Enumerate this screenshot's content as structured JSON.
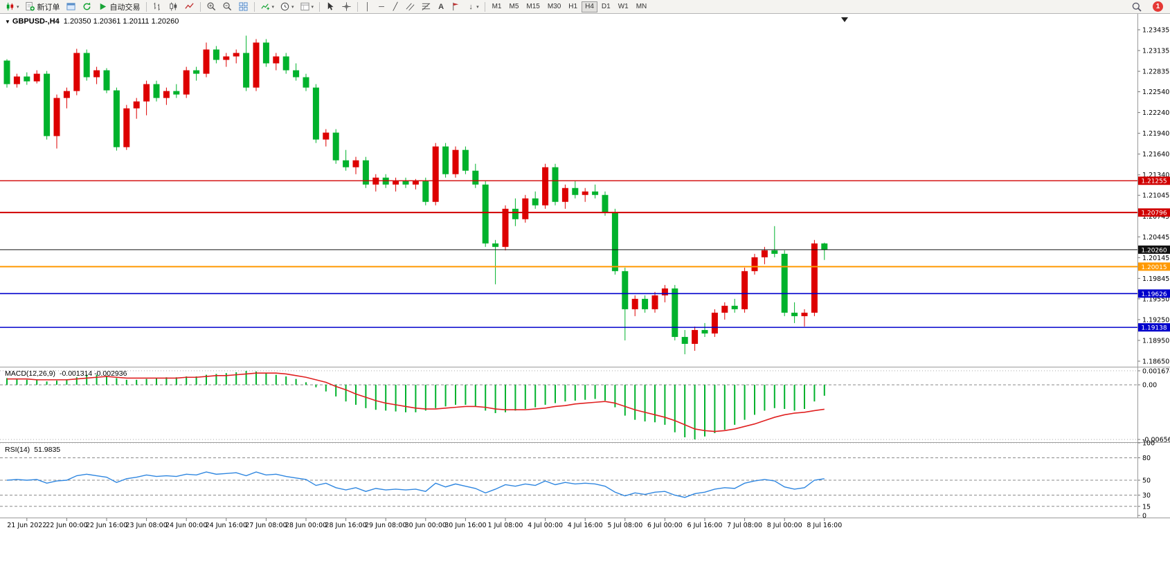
{
  "toolbar": {
    "new_order": "新订单",
    "autotrading": "自动交易",
    "timeframes": [
      "M1",
      "M5",
      "M15",
      "M30",
      "H1",
      "H4",
      "D1",
      "W1",
      "MN"
    ],
    "active_timeframe": "H4",
    "notification_count": "1"
  },
  "chart": {
    "symbol_title": "GBPUSD-,H4",
    "ohlc_line": "1.20350 1.20361 1.20111 1.20260",
    "macd_label": "MACD(12,26,9)",
    "macd_values": "-0.001314 -0.002936",
    "rsi_label": "RSI(14)",
    "rsi_value": "51.9835"
  },
  "chart_data": {
    "type": "candlestick",
    "title": "GBPUSD-,H4",
    "symbol": "GBPUSD-",
    "timeframe": "H4",
    "current_price": 1.2026,
    "price_axis_labels": [
      "1.23435",
      "1.23135",
      "1.22835",
      "1.22540",
      "1.22240",
      "1.21940",
      "1.21640",
      "1.21340",
      "1.21045",
      "1.20745",
      "1.20445",
      "1.20145",
      "1.19845",
      "1.19550",
      "1.19250",
      "1.18950",
      "1.18650"
    ],
    "time_axis": {
      "tick_indices": [
        2,
        6,
        10,
        14,
        18,
        22,
        26,
        30,
        34,
        38,
        42,
        46,
        50,
        54,
        58,
        62,
        66,
        70,
        74,
        78,
        82
      ],
      "tick_labels": [
        "21 Jun 2022",
        "22 Jun 00:00",
        "22 Jun 16:00",
        "23 Jun 08:00",
        "24 Jun 00:00",
        "24 Jun 16:00",
        "27 Jun 08:00",
        "28 Jun 00:00",
        "28 Jun 16:00",
        "29 Jun 08:00",
        "30 Jun 00:00",
        "30 Jun 16:00",
        "1 Jul 08:00",
        "4 Jul 00:00",
        "4 Jul 16:00",
        "5 Jul 08:00",
        "6 Jul 00:00",
        "6 Jul 16:00",
        "7 Jul 08:00",
        "8 Jul 00:00",
        "8 Jul 16:00"
      ]
    },
    "hlines": [
      {
        "price": 1.21255,
        "label": "1.21255",
        "color": "#d00000",
        "lw": 1.4
      },
      {
        "price": 1.20796,
        "label": "1.20796",
        "color": "#d00000",
        "lw": 2
      },
      {
        "price": 1.2026,
        "label": "1.20260",
        "color": "#111111",
        "lw": 1
      },
      {
        "price": 1.20015,
        "label": "1.20015",
        "color": "#ff9900",
        "lw": 2
      },
      {
        "price": 1.19626,
        "label": "1.19626",
        "color": "#0000cc",
        "lw": 1.6
      },
      {
        "price": 1.19138,
        "label": "1.19138",
        "color": "#0000cc",
        "lw": 1.6
      }
    ],
    "candles": {
      "up_color": "#dd0000",
      "down_color": "#00b22c",
      "ohlc": [
        [
          1.2299,
          1.2301,
          1.226,
          1.2265
        ],
        [
          1.2265,
          1.228,
          1.226,
          1.2276
        ],
        [
          1.2276,
          1.2282,
          1.2264,
          1.2269
        ],
        [
          1.2269,
          1.2285,
          1.2266,
          1.228
        ],
        [
          1.228,
          1.2284,
          1.2185,
          1.219
        ],
        [
          1.219,
          1.225,
          1.2172,
          1.2245
        ],
        [
          1.2245,
          1.226,
          1.223,
          1.2255
        ],
        [
          1.2255,
          1.2316,
          1.2249,
          1.231
        ],
        [
          1.231,
          1.2315,
          1.227,
          1.2275
        ],
        [
          1.2275,
          1.229,
          1.2265,
          1.2285
        ],
        [
          1.2285,
          1.2288,
          1.2252,
          1.2256
        ],
        [
          1.2256,
          1.226,
          1.2169,
          1.2174
        ],
        [
          1.2174,
          1.2235,
          1.217,
          1.223
        ],
        [
          1.223,
          1.2245,
          1.2215,
          1.224
        ],
        [
          1.224,
          1.227,
          1.222,
          1.2265
        ],
        [
          1.2265,
          1.227,
          1.224,
          1.2245
        ],
        [
          1.2245,
          1.226,
          1.2235,
          1.2255
        ],
        [
          1.2255,
          1.2265,
          1.2245,
          1.225
        ],
        [
          1.225,
          1.229,
          1.2245,
          1.2285
        ],
        [
          1.2285,
          1.229,
          1.227,
          1.228
        ],
        [
          1.228,
          1.2325,
          1.2275,
          1.2315
        ],
        [
          1.2315,
          1.232,
          1.2295,
          1.23
        ],
        [
          1.23,
          1.231,
          1.229,
          1.2305
        ],
        [
          1.2305,
          1.2315,
          1.2295,
          1.231
        ],
        [
          1.231,
          1.2335,
          1.2255,
          1.226
        ],
        [
          1.226,
          1.233,
          1.2255,
          1.2325
        ],
        [
          1.2325,
          1.233,
          1.229,
          1.2295
        ],
        [
          1.2295,
          1.231,
          1.2285,
          1.2305
        ],
        [
          1.2305,
          1.231,
          1.228,
          1.2285
        ],
        [
          1.2285,
          1.2295,
          1.227,
          1.2275
        ],
        [
          1.2275,
          1.228,
          1.2255,
          1.226
        ],
        [
          1.226,
          1.2265,
          1.218,
          1.2185
        ],
        [
          1.2185,
          1.22,
          1.2175,
          1.2195
        ],
        [
          1.2195,
          1.22,
          1.215,
          1.2155
        ],
        [
          1.2155,
          1.217,
          1.214,
          1.2145
        ],
        [
          1.2145,
          1.216,
          1.2135,
          1.2155
        ],
        [
          1.2155,
          1.216,
          1.2115,
          1.212
        ],
        [
          1.212,
          1.2135,
          1.211,
          1.213
        ],
        [
          1.213,
          1.2135,
          1.2115,
          1.212
        ],
        [
          1.212,
          1.213,
          1.211,
          1.2125
        ],
        [
          1.2125,
          1.213,
          1.2115,
          1.212
        ],
        [
          1.212,
          1.2128,
          1.2113,
          1.2125
        ],
        [
          1.2125,
          1.213,
          1.209,
          1.2095
        ],
        [
          1.2095,
          1.218,
          1.209,
          1.2175
        ],
        [
          1.2175,
          1.218,
          1.213,
          1.2135
        ],
        [
          1.2135,
          1.2175,
          1.213,
          1.217
        ],
        [
          1.217,
          1.2175,
          1.2135,
          1.214
        ],
        [
          1.214,
          1.215,
          1.2115,
          1.212
        ],
        [
          1.212,
          1.2125,
          1.203,
          1.2035
        ],
        [
          1.2035,
          1.204,
          1.1976,
          1.203
        ],
        [
          1.203,
          1.209,
          1.2025,
          1.2085
        ],
        [
          1.2085,
          1.21,
          1.206,
          1.207
        ],
        [
          1.207,
          1.2105,
          1.2065,
          1.21
        ],
        [
          1.21,
          1.211,
          1.2085,
          1.209
        ],
        [
          1.209,
          1.215,
          1.2085,
          1.2145
        ],
        [
          1.2145,
          1.215,
          1.209,
          1.2095
        ],
        [
          1.2095,
          1.212,
          1.2085,
          1.2115
        ],
        [
          1.2115,
          1.2125,
          1.21,
          1.2105
        ],
        [
          1.2105,
          1.2115,
          1.2095,
          1.211
        ],
        [
          1.211,
          1.212,
          1.21,
          1.2105
        ],
        [
          1.2105,
          1.211,
          1.2075,
          1.208
        ],
        [
          1.208,
          1.2085,
          1.199,
          1.1995
        ],
        [
          1.1995,
          1.2,
          1.1895,
          1.194
        ],
        [
          1.194,
          1.196,
          1.193,
          1.1955
        ],
        [
          1.1955,
          1.196,
          1.1935,
          1.194
        ],
        [
          1.194,
          1.1965,
          1.1935,
          1.196
        ],
        [
          1.196,
          1.1975,
          1.195,
          1.197
        ],
        [
          1.197,
          1.1975,
          1.1895,
          1.19
        ],
        [
          1.19,
          1.191,
          1.1875,
          1.189
        ],
        [
          1.189,
          1.1915,
          1.188,
          1.191
        ],
        [
          1.191,
          1.192,
          1.19,
          1.1905
        ],
        [
          1.1905,
          1.194,
          1.19,
          1.1935
        ],
        [
          1.1935,
          1.195,
          1.1925,
          1.1945
        ],
        [
          1.1945,
          1.1955,
          1.1935,
          1.194
        ],
        [
          1.194,
          1.2,
          1.1935,
          1.1995
        ],
        [
          1.1995,
          1.202,
          1.199,
          1.2015
        ],
        [
          1.2015,
          1.203,
          1.2005,
          1.2025
        ],
        [
          1.2025,
          1.206,
          1.2015,
          1.202
        ],
        [
          1.202,
          1.2025,
          1.193,
          1.1935
        ],
        [
          1.1935,
          1.195,
          1.192,
          1.193
        ],
        [
          1.193,
          1.194,
          1.1915,
          1.1935
        ],
        [
          1.1935,
          1.204,
          1.193,
          1.2035
        ],
        [
          1.2035,
          1.20361,
          1.20111,
          1.2026
        ]
      ]
    },
    "macd": {
      "axis_labels": [
        "0.001674",
        "0.00",
        "-0.00656"
      ],
      "axis_values": [
        0.001674,
        0,
        -0.00656
      ],
      "histogram_color": "#00b22c",
      "signal_color": "#e02020",
      "histogram": [
        0.0008,
        0.0007,
        0.0006,
        0.0006,
        0.0004,
        0.0005,
        0.0006,
        0.0009,
        0.0012,
        0.0012,
        0.0011,
        0.0008,
        0.0006,
        0.0006,
        0.0007,
        0.0008,
        0.0009,
        0.0009,
        0.001,
        0.001,
        0.0012,
        0.0013,
        0.0014,
        0.0015,
        0.001674,
        0.0016,
        0.0014,
        0.0012,
        0.001,
        0.0007,
        0.0003,
        -0.0003,
        -0.0008,
        -0.0014,
        -0.002,
        -0.0024,
        -0.0028,
        -0.003,
        -0.0031,
        -0.0032,
        -0.0033,
        -0.0033,
        -0.0031,
        -0.0028,
        -0.0026,
        -0.0024,
        -0.0024,
        -0.0026,
        -0.0031,
        -0.0034,
        -0.0033,
        -0.0031,
        -0.0029,
        -0.0027,
        -0.0024,
        -0.0022,
        -0.002,
        -0.0019,
        -0.0018,
        -0.0017,
        -0.0019,
        -0.0027,
        -0.0037,
        -0.0042,
        -0.0044,
        -0.0045,
        -0.0048,
        -0.0057,
        -0.0063,
        -0.00656,
        -0.0062,
        -0.0058,
        -0.0054,
        -0.0048,
        -0.0042,
        -0.0036,
        -0.0031,
        -0.0028,
        -0.0029,
        -0.0031,
        -0.0029,
        -0.002,
        -0.001314
      ],
      "signal": [
        0.0007,
        0.0007,
        0.0007,
        0.0006,
        0.0006,
        0.0006,
        0.0006,
        0.0007,
        0.0008,
        0.0009,
        0.001,
        0.0009,
        0.0008,
        0.0008,
        0.0008,
        0.0008,
        0.0008,
        0.0008,
        0.0009,
        0.0009,
        0.001,
        0.0011,
        0.0011,
        0.0012,
        0.0013,
        0.0014,
        0.0014,
        0.0014,
        0.0013,
        0.0011,
        0.0009,
        0.0006,
        0.0003,
        -0.0002,
        -0.0006,
        -0.0011,
        -0.0015,
        -0.0019,
        -0.0022,
        -0.0024,
        -0.0026,
        -0.0028,
        -0.0029,
        -0.0029,
        -0.0028,
        -0.0027,
        -0.0026,
        -0.0026,
        -0.0027,
        -0.0029,
        -0.003,
        -0.003,
        -0.003,
        -0.0029,
        -0.0028,
        -0.0026,
        -0.0025,
        -0.0023,
        -0.0022,
        -0.0021,
        -0.002,
        -0.0022,
        -0.0026,
        -0.003,
        -0.0033,
        -0.0036,
        -0.0039,
        -0.0043,
        -0.0048,
        -0.0053,
        -0.0055,
        -0.0056,
        -0.0055,
        -0.0053,
        -0.005,
        -0.0047,
        -0.0043,
        -0.0039,
        -0.0036,
        -0.0034,
        -0.0033,
        -0.0031,
        -0.002936
      ],
      "scale_max": 0.002,
      "scale_min": -0.0068
    },
    "rsi": {
      "axis_labels": [
        "100",
        "80",
        "50",
        "30",
        "15",
        "0"
      ],
      "axis_values": [
        100,
        80,
        50,
        30,
        15,
        0
      ],
      "levels_dashed": [
        80,
        50,
        30,
        15
      ],
      "levels_dotted": [
        100
      ],
      "line_color": "#2e86e0",
      "range": [
        0,
        100
      ],
      "values": [
        50,
        51,
        50,
        51,
        46,
        49,
        50,
        56,
        58,
        56,
        54,
        47,
        52,
        54,
        57,
        55,
        56,
        55,
        58,
        57,
        61,
        58,
        59,
        60,
        56,
        61,
        57,
        58,
        55,
        53,
        51,
        43,
        46,
        40,
        37,
        40,
        35,
        39,
        37,
        38,
        37,
        38,
        35,
        46,
        41,
        45,
        42,
        39,
        33,
        38,
        44,
        42,
        45,
        43,
        49,
        44,
        47,
        45,
        46,
        45,
        42,
        34,
        29,
        33,
        31,
        34,
        35,
        30,
        27,
        32,
        34,
        38,
        40,
        39,
        46,
        49,
        51,
        49,
        41,
        38,
        40,
        50,
        51.98
      ]
    }
  }
}
